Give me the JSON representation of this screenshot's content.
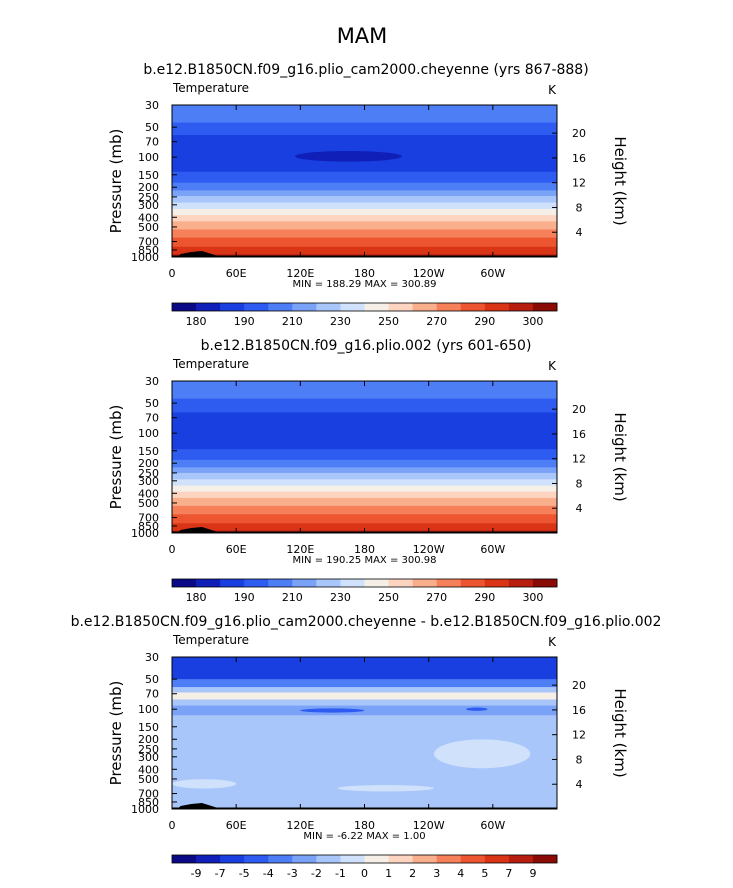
{
  "figure": {
    "season": "MAM",
    "panel_titles": [
      "b.e12.B1850CN.f09_g16.plio_cam2000.cheyenne (yrs 867-888)",
      "b.e12.B1850CN.f09_g16.plio.002 (yrs 601-650)",
      "b.e12.B1850CN.f09_g16.plio_cam2000.cheyenne - b.e12.B1850CN.f09_g16.plio.002"
    ]
  },
  "chart_data": [
    {
      "type": "heatmap",
      "variable": "Temperature",
      "units": "K",
      "ylabel": "Pressure (mb)",
      "y2label": "Height (km)",
      "xticks": [
        "0",
        "60E",
        "120E",
        "180",
        "120W",
        "60W"
      ],
      "yticks": [
        "30",
        "50",
        "70",
        "100",
        "150",
        "200",
        "250",
        "300",
        "400",
        "500",
        "700",
        "850",
        "1000"
      ],
      "y2ticks": [
        "20",
        "16",
        "12",
        "8",
        "4"
      ],
      "stats": "MIN = 188.29   MAX = 300.89",
      "min": 188.29,
      "max": 300.89,
      "colorbar": {
        "labels": [
          "180",
          "190",
          "210",
          "230",
          "250",
          "270",
          "290",
          "300"
        ],
        "colors": [
          "#0a0a87",
          "#0f1fb8",
          "#1a3fe0",
          "#2e5cf0",
          "#4d7ef5",
          "#7aa3f7",
          "#a8c6fa",
          "#d0e2fb",
          "#f6efe8",
          "#fcd4c0",
          "#f9ae8c",
          "#f5805a",
          "#ec5530",
          "#d93416",
          "#b81e10",
          "#8a0a05"
        ]
      },
      "bands": [
        {
          "p_top": 30,
          "p_bot": 45,
          "color": "#4d7ef5"
        },
        {
          "p_top": 45,
          "p_bot": 60,
          "color": "#2e5cf0"
        },
        {
          "p_top": 60,
          "p_bot": 140,
          "color": "#1a3fe0"
        },
        {
          "p_top": 140,
          "p_bot": 180,
          "color": "#2e5cf0"
        },
        {
          "p_top": 180,
          "p_bot": 215,
          "color": "#4d7ef5"
        },
        {
          "p_top": 215,
          "p_bot": 245,
          "color": "#7aa3f7"
        },
        {
          "p_top": 245,
          "p_bot": 285,
          "color": "#a8c6fa"
        },
        {
          "p_top": 285,
          "p_bot": 330,
          "color": "#d0e2fb"
        },
        {
          "p_top": 330,
          "p_bot": 380,
          "color": "#f6efe8"
        },
        {
          "p_top": 380,
          "p_bot": 440,
          "color": "#fcd4c0"
        },
        {
          "p_top": 440,
          "p_bot": 530,
          "color": "#f9ae8c"
        },
        {
          "p_top": 530,
          "p_bot": 640,
          "color": "#f5805a"
        },
        {
          "p_top": 640,
          "p_bot": 790,
          "color": "#ec5530"
        },
        {
          "p_top": 790,
          "p_bot": 940,
          "color": "#d93416"
        },
        {
          "p_top": 940,
          "p_bot": 1000,
          "color": "#b81e10"
        }
      ],
      "blobs": [
        {
          "lon": 165,
          "p": 98,
          "half_width_deg": 50,
          "half_height_p": 12,
          "color": "#0f1fb8"
        }
      ]
    },
    {
      "type": "heatmap",
      "variable": "Temperature",
      "units": "K",
      "ylabel": "Pressure (mb)",
      "y2label": "Height (km)",
      "xticks": [
        "0",
        "60E",
        "120E",
        "180",
        "120W",
        "60W"
      ],
      "yticks": [
        "30",
        "50",
        "70",
        "100",
        "150",
        "200",
        "250",
        "300",
        "400",
        "500",
        "700",
        "850",
        "1000"
      ],
      "y2ticks": [
        "20",
        "16",
        "12",
        "8",
        "4"
      ],
      "stats": "MIN = 190.25   MAX = 300.98",
      "min": 190.25,
      "max": 300.98,
      "colorbar": {
        "labels": [
          "180",
          "190",
          "210",
          "230",
          "250",
          "270",
          "290",
          "300"
        ],
        "colors": [
          "#0a0a87",
          "#0f1fb8",
          "#1a3fe0",
          "#2e5cf0",
          "#4d7ef5",
          "#7aa3f7",
          "#a8c6fa",
          "#d0e2fb",
          "#f6efe8",
          "#fcd4c0",
          "#f9ae8c",
          "#f5805a",
          "#ec5530",
          "#d93416",
          "#b81e10",
          "#8a0a05"
        ]
      },
      "bands": [
        {
          "p_top": 30,
          "p_bot": 45,
          "color": "#4d7ef5"
        },
        {
          "p_top": 45,
          "p_bot": 62,
          "color": "#2e5cf0"
        },
        {
          "p_top": 62,
          "p_bot": 145,
          "color": "#1a3fe0"
        },
        {
          "p_top": 145,
          "p_bot": 185,
          "color": "#2e5cf0"
        },
        {
          "p_top": 185,
          "p_bot": 220,
          "color": "#4d7ef5"
        },
        {
          "p_top": 220,
          "p_bot": 250,
          "color": "#7aa3f7"
        },
        {
          "p_top": 250,
          "p_bot": 290,
          "color": "#a8c6fa"
        },
        {
          "p_top": 290,
          "p_bot": 335,
          "color": "#d0e2fb"
        },
        {
          "p_top": 335,
          "p_bot": 385,
          "color": "#f6efe8"
        },
        {
          "p_top": 385,
          "p_bot": 445,
          "color": "#fcd4c0"
        },
        {
          "p_top": 445,
          "p_bot": 535,
          "color": "#f9ae8c"
        },
        {
          "p_top": 535,
          "p_bot": 650,
          "color": "#f5805a"
        },
        {
          "p_top": 650,
          "p_bot": 800,
          "color": "#ec5530"
        },
        {
          "p_top": 800,
          "p_bot": 945,
          "color": "#d93416"
        },
        {
          "p_top": 945,
          "p_bot": 1000,
          "color": "#b81e10"
        }
      ],
      "blobs": []
    },
    {
      "type": "heatmap",
      "variable": "Temperature",
      "units": "K",
      "ylabel": "Pressure (mb)",
      "y2label": "Height (km)",
      "xticks": [
        "0",
        "60E",
        "120E",
        "180",
        "120W",
        "60W"
      ],
      "yticks": [
        "30",
        "50",
        "70",
        "100",
        "150",
        "200",
        "250",
        "300",
        "400",
        "500",
        "700",
        "850",
        "1000"
      ],
      "y2ticks": [
        "20",
        "16",
        "12",
        "8",
        "4"
      ],
      "stats": "MIN =   -6.22   MAX =    1.00",
      "min": -6.22,
      "max": 1.0,
      "colorbar": {
        "labels": [
          "-9",
          "-7",
          "-5",
          "-4",
          "-3",
          "-2",
          "-1",
          "0",
          "1",
          "2",
          "3",
          "4",
          "5",
          "7",
          "9"
        ],
        "colors": [
          "#0a0a87",
          "#0f1fb8",
          "#1a3fe0",
          "#2e5cf0",
          "#4d7ef5",
          "#7aa3f7",
          "#a8c6fa",
          "#d0e2fb",
          "#f6efe8",
          "#fcd4c0",
          "#f9ae8c",
          "#f5805a",
          "#ec5530",
          "#d93416",
          "#b81e10",
          "#8a0a05"
        ]
      },
      "bands": [
        {
          "p_top": 30,
          "p_bot": 50,
          "color": "#1a3fe0"
        },
        {
          "p_top": 50,
          "p_bot": 60,
          "color": "#4d7ef5"
        },
        {
          "p_top": 60,
          "p_bot": 68,
          "color": "#a8c6fa"
        },
        {
          "p_top": 68,
          "p_bot": 80,
          "color": "#f6efe8"
        },
        {
          "p_top": 80,
          "p_bot": 92,
          "color": "#a8c6fa"
        },
        {
          "p_top": 92,
          "p_bot": 115,
          "color": "#7aa3f7"
        },
        {
          "p_top": 115,
          "p_bot": 1000,
          "color": "#a8c6fa"
        }
      ],
      "blobs": [
        {
          "lon": 150,
          "p": 103,
          "half_width_deg": 30,
          "half_height_p": 5,
          "color": "#2e5cf0"
        },
        {
          "lon": 285,
          "p": 100,
          "half_width_deg": 10,
          "half_height_p": 4,
          "color": "#2e5cf0"
        },
        {
          "lon": 290,
          "p": 280,
          "half_width_deg": 45,
          "half_height_p": 90,
          "color": "#d0e2fb"
        },
        {
          "lon": 30,
          "p": 560,
          "half_width_deg": 30,
          "half_height_p": 60,
          "color": "#d0e2fb"
        },
        {
          "lon": 200,
          "p": 620,
          "half_width_deg": 45,
          "half_height_p": 45,
          "color": "#d0e2fb"
        }
      ]
    }
  ]
}
